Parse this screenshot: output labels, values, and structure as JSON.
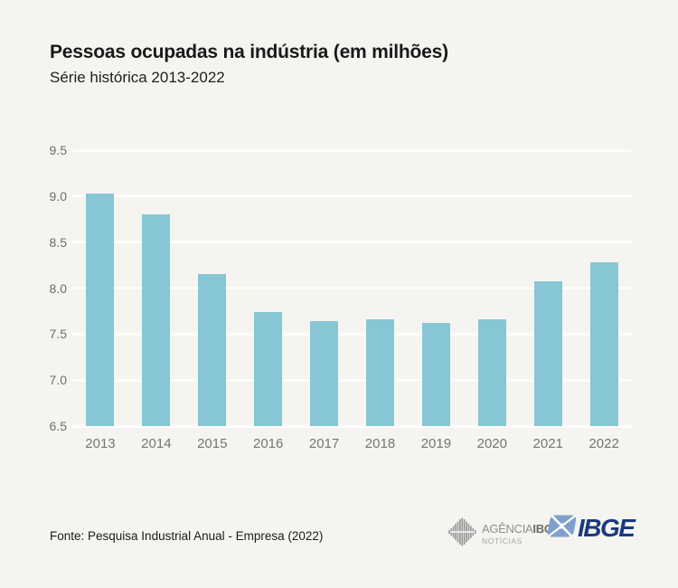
{
  "header": {
    "title": "Pessoas ocupadas na indústria (em milhões)",
    "subtitle": "Série histórica 2013-2022"
  },
  "chart_data": {
    "type": "bar",
    "title": "Pessoas ocupadas na indústria (em milhões)",
    "subtitle": "Série histórica 2013-2022",
    "categories": [
      "2013",
      "2014",
      "2015",
      "2016",
      "2017",
      "2018",
      "2019",
      "2020",
      "2021",
      "2022"
    ],
    "values": [
      9.03,
      8.8,
      8.15,
      7.74,
      7.64,
      7.66,
      7.62,
      7.66,
      8.07,
      8.28
    ],
    "xlabel": "",
    "ylabel": "",
    "ylim": [
      6.5,
      9.5
    ],
    "yticks": [
      6.5,
      7.0,
      7.5,
      8.0,
      8.5,
      9.0,
      9.5
    ],
    "grid": true,
    "legend": null,
    "bar_color": "#87c6d4",
    "gridline_color": "#fdfdfc",
    "background_color": "#f5f4f1"
  },
  "footer": {
    "source": "Fonte: Pesquisa Industrial Anual - Empresa (2022)",
    "agencia_logo": {
      "name_light": "AGÊNCIA",
      "name_bold": "IBGE",
      "line2": "NOTÍCIAS",
      "gray": "#9a9a9a"
    },
    "ibge_logo": {
      "text": "IBGE",
      "navy": "#1b3a7d",
      "light_blue": "#7fa0cc"
    }
  }
}
